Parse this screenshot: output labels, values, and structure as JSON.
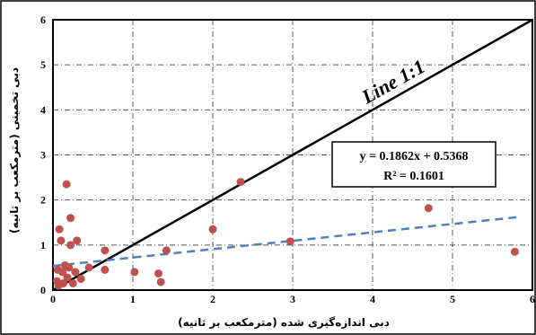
{
  "chart_data": {
    "type": "scatter",
    "xlabel": "دبی اندازه‌گیری شده (مترمکعب بر ثانیه)",
    "ylabel": "دبی تخمینی (مترمکعب بر ثانیه)",
    "xlim": [
      0,
      6
    ],
    "ylim": [
      0,
      6
    ],
    "xticks": [
      "0",
      "1",
      "2",
      "3",
      "4",
      "5",
      "6"
    ],
    "yticks": [
      "0",
      "1",
      "2",
      "3",
      "4",
      "5",
      "6"
    ],
    "grid": true,
    "points": [
      {
        "x": 0.05,
        "y": 0.2
      },
      {
        "x": 0.06,
        "y": 0.45
      },
      {
        "x": 0.07,
        "y": 0.1
      },
      {
        "x": 0.08,
        "y": 1.35
      },
      {
        "x": 0.1,
        "y": 1.1
      },
      {
        "x": 0.12,
        "y": 0.4
      },
      {
        "x": 0.13,
        "y": 0.15
      },
      {
        "x": 0.15,
        "y": 0.55
      },
      {
        "x": 0.17,
        "y": 2.35
      },
      {
        "x": 0.18,
        "y": 0.28
      },
      {
        "x": 0.2,
        "y": 0.5
      },
      {
        "x": 0.22,
        "y": 1.0
      },
      {
        "x": 0.22,
        "y": 1.6
      },
      {
        "x": 0.25,
        "y": 0.15
      },
      {
        "x": 0.28,
        "y": 0.4
      },
      {
        "x": 0.3,
        "y": 1.1
      },
      {
        "x": 0.35,
        "y": 0.25
      },
      {
        "x": 0.45,
        "y": 0.5
      },
      {
        "x": 0.65,
        "y": 0.45
      },
      {
        "x": 0.65,
        "y": 0.88
      },
      {
        "x": 1.02,
        "y": 0.4
      },
      {
        "x": 1.32,
        "y": 0.37
      },
      {
        "x": 1.35,
        "y": 0.18
      },
      {
        "x": 1.42,
        "y": 0.88
      },
      {
        "x": 2.0,
        "y": 1.35
      },
      {
        "x": 2.35,
        "y": 2.4
      },
      {
        "x": 2.97,
        "y": 1.08
      },
      {
        "x": 4.7,
        "y": 1.82
      },
      {
        "x": 5.78,
        "y": 0.85
      }
    ],
    "identity_line_label": "Line 1:1",
    "trendline": {
      "slope": 0.1862,
      "intercept": 0.5368,
      "x_range": [
        0,
        5.8
      ]
    },
    "equation_text": "y = 0.1862x + 0.5368",
    "r2_text": "R² = 0.1601",
    "colors": {
      "points": "#c0504d",
      "trendline": "#4f81bd",
      "identity": "#000000",
      "grid": "#555555"
    }
  }
}
